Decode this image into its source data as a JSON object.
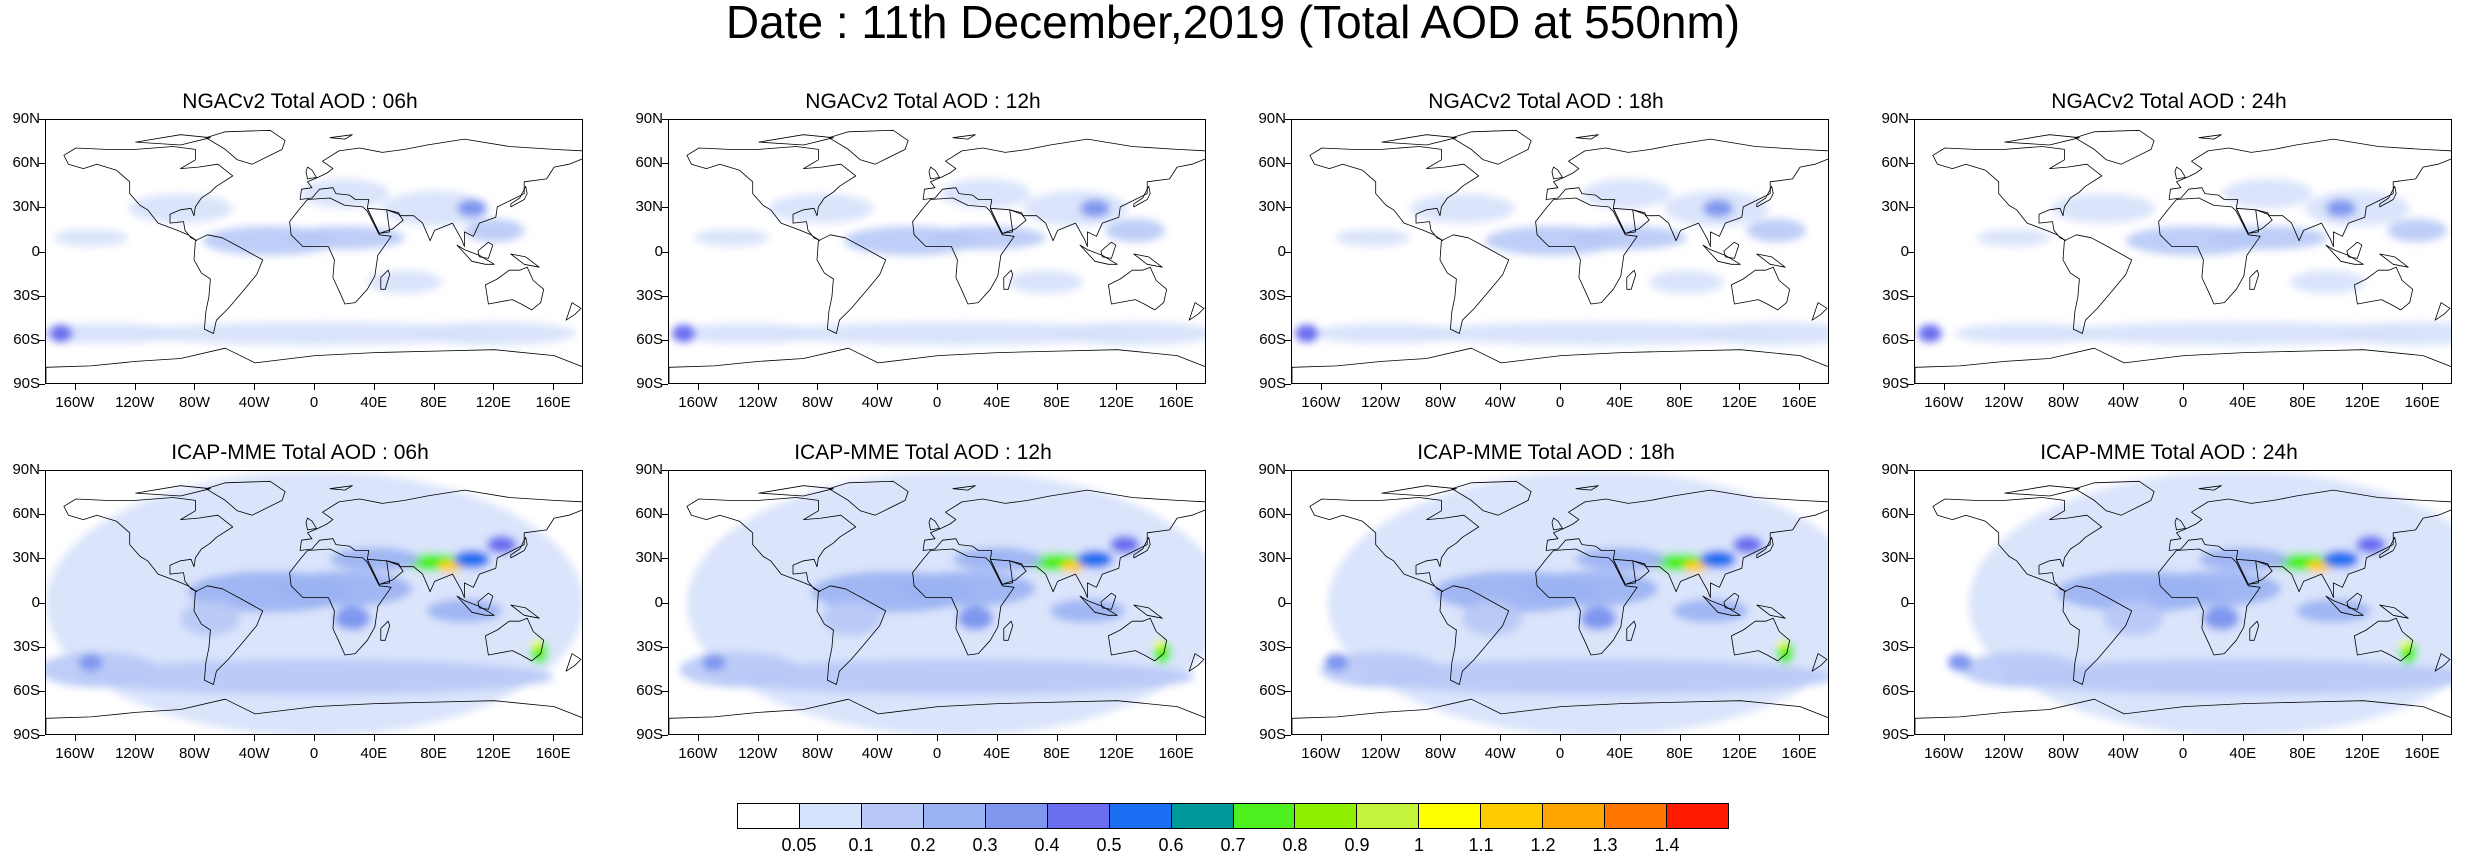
{
  "title": "Date : 11th December,2019 (Total AOD at 550nm)",
  "lat_labels": [
    "90N",
    "60N",
    "30N",
    "0",
    "30S",
    "60S",
    "90S"
  ],
  "lon_labels": [
    "160W",
    "120W",
    "80W",
    "40W",
    "0",
    "40E",
    "80E",
    "120E",
    "160E"
  ],
  "panels": [
    {
      "title": "NGACv2 Total AOD : 06h",
      "model": "ngac",
      "hour": "06h"
    },
    {
      "title": "NGACv2 Total AOD : 12h",
      "model": "ngac",
      "hour": "12h"
    },
    {
      "title": "NGACv2 Total AOD : 18h",
      "model": "ngac",
      "hour": "18h"
    },
    {
      "title": "NGACv2 Total AOD : 24h",
      "model": "ngac",
      "hour": "24h"
    },
    {
      "title": "ICAP-MME Total AOD : 06h",
      "model": "icap",
      "hour": "06h"
    },
    {
      "title": "ICAP-MME Total AOD : 12h",
      "model": "icap",
      "hour": "12h"
    },
    {
      "title": "ICAP-MME Total AOD : 18h",
      "model": "icap",
      "hour": "18h"
    },
    {
      "title": "ICAP-MME Total AOD : 24h",
      "model": "icap",
      "hour": "24h"
    }
  ],
  "colorbar": {
    "levels": [
      "0.05",
      "0.1",
      "0.2",
      "0.3",
      "0.4",
      "0.5",
      "0.6",
      "0.7",
      "0.8",
      "0.9",
      "1",
      "1.1",
      "1.2",
      "1.3",
      "1.4"
    ],
    "colors": [
      "#ffffff",
      "#d6e1fb",
      "#b8c9f7",
      "#9bb2f3",
      "#7f97ef",
      "#6a6ef0",
      "#1c6ff2",
      "#009999",
      "#4ff01f",
      "#8cf000",
      "#c5f23b",
      "#ffff00",
      "#ffcc00",
      "#ffa500",
      "#ff7700",
      "#ff1a00"
    ]
  }
}
